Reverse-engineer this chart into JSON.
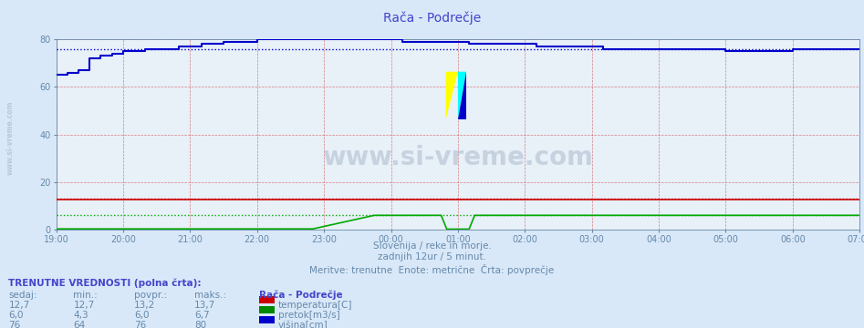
{
  "title": "Rača - Podrečje",
  "title_color": "#4444cc",
  "bg_color": "#d8e8f8",
  "plot_bg_color": "#e8f0f8",
  "x_labels": [
    "19:00",
    "20:00",
    "21:00",
    "22:00",
    "23:00",
    "00:00",
    "01:00",
    "02:00",
    "03:00",
    "04:00",
    "05:00",
    "06:00",
    "07:00"
  ],
  "x_ticks": [
    0,
    12,
    24,
    36,
    48,
    60,
    72,
    84,
    96,
    108,
    120,
    132,
    144
  ],
  "ylim": [
    0,
    80
  ],
  "yticks": [
    0,
    20,
    40,
    60,
    80
  ],
  "grid_color": "#cc4444",
  "temp_color": "#cc0000",
  "flow_color": "#00aa00",
  "height_color": "#0000cc",
  "watermark_color": "#aabbcc",
  "subtitle1": "Slovenija / reke in morje.",
  "subtitle2": "zadnjih 12ur / 5 minut.",
  "subtitle3": "Meritve: trenutne  Enote: metrične  Črta: povprečje",
  "subtitle_color": "#6688aa",
  "table_header": "TRENUTNE VREDNOSTI (polna črta):",
  "col_headers": [
    "sedaj:",
    "min.:",
    "povpr.:",
    "maks.:"
  ],
  "station_name": "Rača - Podrečje",
  "rows": [
    {
      "sedaj": "12,7",
      "min": "12,7",
      "povpr": "13,2",
      "maks": "13,7",
      "label": "temperatura[C]",
      "color": "#cc0000"
    },
    {
      "sedaj": "6,0",
      "min": "4,3",
      "povpr": "6,0",
      "maks": "6,7",
      "label": "pretok[m3/s]",
      "color": "#008800"
    },
    {
      "sedaj": "76",
      "min": "64",
      "povpr": "76",
      "maks": "80",
      "label": "višina[cm]",
      "color": "#0000cc"
    }
  ],
  "n_points": 145,
  "height_avg": 76,
  "temp_avg": 13.2,
  "flow_avg": 6.0
}
